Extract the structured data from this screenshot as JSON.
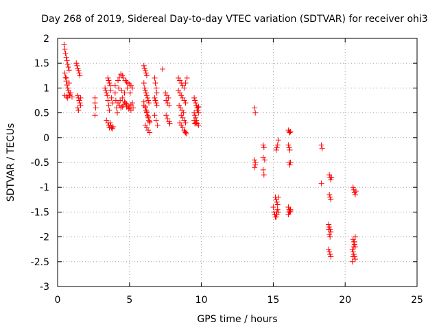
{
  "chart_data": {
    "type": "scatter",
    "title": "Day 268 of 2019, Sidereal Day-to-day VTEC variation (SDTVAR) for receiver ohi3",
    "xlabel": "GPS time / hours",
    "ylabel": "SDTVAR / TECUs",
    "xlim": [
      0,
      25
    ],
    "ylim": [
      -3,
      2
    ],
    "xticks": [
      0,
      5,
      10,
      15,
      20,
      25
    ],
    "yticks": [
      -3,
      -2.5,
      -2,
      -1.5,
      -1,
      -0.5,
      0,
      0.5,
      1,
      1.5,
      2
    ],
    "grid": true,
    "marker": "+",
    "series": [
      {
        "name": "SDTVAR",
        "color": "#ff0000",
        "x": [
          0.45,
          0.5,
          0.55,
          0.6,
          0.65,
          0.7,
          0.75,
          0.8,
          0.5,
          0.55,
          0.6,
          0.65,
          0.7,
          0.75,
          0.8,
          0.85,
          0.5,
          0.6,
          0.7,
          0.8,
          0.9,
          1.0,
          0.6,
          0.8,
          1.3,
          1.35,
          1.4,
          1.45,
          1.5,
          1.55,
          1.4,
          1.45,
          1.5,
          1.55,
          1.6,
          1.4,
          1.45,
          1.5,
          1.6,
          2.6,
          2.6,
          2.65,
          2.6,
          3.3,
          3.35,
          3.4,
          3.45,
          3.5,
          3.55,
          3.6,
          3.5,
          3.55,
          3.6,
          3.65,
          3.7,
          3.75,
          3.8,
          3.4,
          3.5,
          3.55,
          3.6,
          3.65,
          3.7,
          3.75,
          3.8,
          3.85,
          4.0,
          4.05,
          4.1,
          4.15,
          4.0,
          4.2,
          4.3,
          4.4,
          4.5,
          4.6,
          4.7,
          4.8,
          4.9,
          5.0,
          5.1,
          5.2,
          4.3,
          4.4,
          4.5,
          4.6,
          4.7,
          4.8,
          4.9,
          5.0,
          5.1,
          5.2,
          4.2,
          4.35,
          4.5,
          4.65,
          4.8,
          4.95,
          5.1,
          5.25,
          4.25,
          4.45,
          4.65,
          4.85,
          5.05,
          6.0,
          6.05,
          6.1,
          6.15,
          6.2,
          6.0,
          6.05,
          6.1,
          6.15,
          6.2,
          6.25,
          6.3,
          6.35,
          6.0,
          6.1,
          6.15,
          6.2,
          6.25,
          6.3,
          6.35,
          6.4,
          6.1,
          6.2,
          6.3,
          6.4,
          6.0,
          6.1,
          6.2,
          6.3,
          6.4,
          6.75,
          6.8,
          6.85,
          6.9,
          6.75,
          6.8,
          6.85,
          6.9,
          6.75,
          6.85,
          6.95,
          7.3,
          7.5,
          7.6,
          7.7,
          7.55,
          7.65,
          7.75,
          7.55,
          7.65,
          7.75,
          7.8,
          8.4,
          8.5,
          8.6,
          8.7,
          8.8,
          8.9,
          9.0,
          8.4,
          8.5,
          8.6,
          8.7,
          8.8,
          8.9,
          8.45,
          8.55,
          8.65,
          8.75,
          8.6,
          8.7,
          8.8,
          8.9,
          8.5,
          8.6,
          8.7,
          8.8,
          8.85,
          8.9,
          8.95,
          9.5,
          9.55,
          9.6,
          9.65,
          9.7,
          9.75,
          9.8,
          9.5,
          9.55,
          9.6,
          9.65,
          9.7,
          9.75,
          9.8,
          9.5,
          9.6,
          9.7,
          9.8,
          9.55,
          9.65,
          13.7,
          13.75,
          13.7,
          13.75,
          13.7,
          13.75,
          14.3,
          14.35,
          14.3,
          14.4,
          14.3,
          14.35,
          15.0,
          15.05,
          15.1,
          15.15,
          15.2,
          15.25,
          15.2,
          15.25,
          15.3,
          15.35,
          15.15,
          15.2,
          15.25,
          15.3,
          15.35,
          15.2,
          15.25,
          15.3,
          15.35,
          16.05,
          16.1,
          16.15,
          16.2,
          16.05,
          16.1,
          16.15,
          16.1,
          16.15,
          16.2,
          16.05,
          16.1,
          16.15,
          16.2,
          16.05,
          16.1,
          16.15,
          16.2,
          18.35,
          18.4,
          18.35,
          18.9,
          18.95,
          19.0,
          19.05,
          18.9,
          18.95,
          19.0,
          18.85,
          18.9,
          18.95,
          19.0,
          18.85,
          18.9,
          18.95,
          19.0,
          18.85,
          18.9,
          18.95,
          19.0,
          20.55,
          20.6,
          20.65,
          20.7,
          20.75,
          20.55,
          20.6,
          20.65,
          20.7,
          20.5,
          20.55,
          20.6,
          20.65,
          20.7,
          20.5,
          20.55,
          20.6,
          20.65,
          20.7
        ],
        "y": [
          1.88,
          1.78,
          1.7,
          1.62,
          1.55,
          1.48,
          1.42,
          1.36,
          1.3,
          1.22,
          1.14,
          1.06,
          1.0,
          0.95,
          0.9,
          0.86,
          0.85,
          0.82,
          0.8,
          0.85,
          0.9,
          0.82,
          1.2,
          1.1,
          1.5,
          1.45,
          1.4,
          1.35,
          1.3,
          1.25,
          0.85,
          0.8,
          0.75,
          0.7,
          0.65,
          0.6,
          0.55,
          0.75,
          0.8,
          0.8,
          0.7,
          0.6,
          0.45,
          1.0,
          0.95,
          0.9,
          0.85,
          0.75,
          0.65,
          0.55,
          1.2,
          1.15,
          1.1,
          1.05,
          0.95,
          0.8,
          0.7,
          0.35,
          0.3,
          0.25,
          0.2,
          0.3,
          0.25,
          0.2,
          0.18,
          0.22,
          0.9,
          0.75,
          0.6,
          0.5,
          1.05,
          1.15,
          1.22,
          1.28,
          1.25,
          1.2,
          1.15,
          1.12,
          1.1,
          1.08,
          1.05,
          1.0,
          0.65,
          0.6,
          0.62,
          0.66,
          0.7,
          0.68,
          0.64,
          0.6,
          0.66,
          0.7,
          0.7,
          0.75,
          0.8,
          0.72,
          0.62,
          0.58,
          0.55,
          0.6,
          1.0,
          0.95,
          0.9,
          1.0,
          0.9,
          1.45,
          1.4,
          1.35,
          1.3,
          1.25,
          1.1,
          1.0,
          0.95,
          0.9,
          0.85,
          0.8,
          0.75,
          0.7,
          0.65,
          0.6,
          0.55,
          0.5,
          0.45,
          0.4,
          0.35,
          0.3,
          0.25,
          0.2,
          0.15,
          0.1,
          0.72,
          0.62,
          0.52,
          0.42,
          0.32,
          1.2,
          1.1,
          1.0,
          0.9,
          0.8,
          0.75,
          0.7,
          0.65,
          0.45,
          0.35,
          0.25,
          1.38,
          0.9,
          0.85,
          0.8,
          0.75,
          0.7,
          0.65,
          0.45,
          0.38,
          0.32,
          0.28,
          1.2,
          1.15,
          1.1,
          1.05,
          1.0,
          1.1,
          1.2,
          0.95,
          0.9,
          0.85,
          0.8,
          0.75,
          0.7,
          0.65,
          0.6,
          0.55,
          0.5,
          0.45,
          0.4,
          0.35,
          0.3,
          0.3,
          0.25,
          0.2,
          0.15,
          0.12,
          0.1,
          0.08,
          0.8,
          0.75,
          0.7,
          0.65,
          0.6,
          0.55,
          0.5,
          0.5,
          0.45,
          0.4,
          0.35,
          0.55,
          0.6,
          0.62,
          0.35,
          0.3,
          0.28,
          0.25,
          0.28,
          0.3,
          0.6,
          0.5,
          -0.45,
          -0.55,
          -0.6,
          -0.5,
          -0.15,
          -0.2,
          -0.4,
          -0.45,
          -0.65,
          -0.75,
          -1.4,
          -1.5,
          -1.55,
          -1.6,
          -1.55,
          -1.5,
          -0.25,
          -0.2,
          -0.15,
          -0.05,
          -1.2,
          -1.25,
          -1.3,
          -1.35,
          -1.2,
          -1.6,
          -1.55,
          -1.45,
          -1.5,
          0.15,
          0.12,
          0.1,
          0.12,
          -0.15,
          -0.2,
          -0.25,
          -0.5,
          -0.55,
          -0.5,
          -1.4,
          -1.45,
          -1.5,
          -1.48,
          -1.55,
          -1.5,
          -1.48,
          -1.45,
          -0.15,
          -0.22,
          -0.92,
          -0.75,
          -0.8,
          -0.85,
          -0.8,
          -1.15,
          -1.2,
          -1.25,
          -1.75,
          -1.8,
          -1.85,
          -1.9,
          -2.25,
          -2.3,
          -2.35,
          -2.4,
          -1.85,
          -1.95,
          -2.0,
          -1.9,
          -1.0,
          -1.05,
          -1.1,
          -1.15,
          -1.08,
          -2.05,
          -2.1,
          -2.15,
          -2.2,
          -2.25,
          -2.3,
          -2.35,
          -2.4,
          -2.45,
          -2.5,
          -2.4,
          -2.2,
          -2.1,
          -2.0
        ]
      }
    ]
  }
}
